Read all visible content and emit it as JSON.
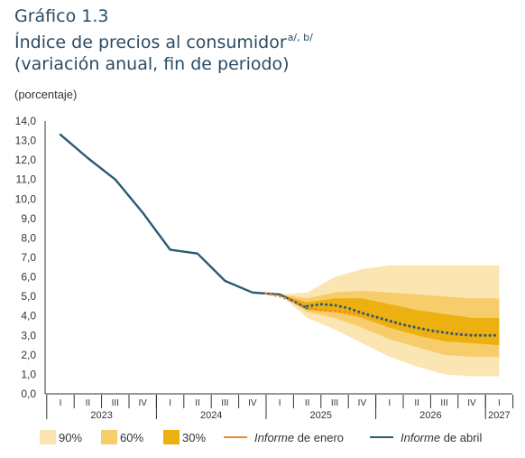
{
  "header": {
    "label": "Gráfico 1.3",
    "title": "Índice de precios al consumidor",
    "title_sup": "a/, b/",
    "subtitle": "(variación anual, fin de periodo)"
  },
  "units": "(porcentaje)",
  "legend": {
    "band90": "90%",
    "band60": "60%",
    "band30": "30%",
    "enero_it": "Informe",
    "enero_rest": " de enero",
    "abril_it": "Informe",
    "abril_rest": " de abril"
  },
  "colors": {
    "band90": "#fbe6b3",
    "band60": "#f6cd6a",
    "band30": "#ecb010",
    "enero": "#ef8a2c",
    "abril": "#2a5a73",
    "text": "#2a4b63",
    "axis": "#333333"
  },
  "chart_data": {
    "type": "line",
    "ylim": [
      0,
      14
    ],
    "yticks": [
      "0,0",
      "1,0",
      "2,0",
      "3,0",
      "4,0",
      "5,0",
      "6,0",
      "7,0",
      "8,0",
      "9,0",
      "10,0",
      "11,0",
      "12,0",
      "13,0",
      "14,0"
    ],
    "quarters": [
      "I",
      "II",
      "III",
      "IV",
      "I",
      "II",
      "III",
      "IV",
      "I",
      "II",
      "III",
      "IV",
      "I",
      "II",
      "III",
      "IV",
      "I"
    ],
    "years": [
      "2023",
      "2024",
      "2025",
      "2026",
      "2027"
    ],
    "series": [
      {
        "name": "Informe de abril",
        "style": "solid",
        "x": [
          0,
          1,
          2,
          3,
          4,
          5,
          6,
          7,
          8,
          9
        ],
        "y": [
          13.3,
          12.1,
          11.0,
          9.3,
          7.4,
          7.2,
          5.8,
          5.2,
          5.1,
          4.4
        ]
      },
      {
        "name": "Informe de enero",
        "style": "dotted",
        "x": [
          7.5,
          8,
          8.5,
          9,
          9.5,
          10,
          10.5,
          11,
          11.5,
          12,
          12.5,
          13,
          13.5,
          14,
          14.5,
          15,
          15.5,
          16
        ],
        "y": [
          5.15,
          5.0,
          4.75,
          4.45,
          4.3,
          4.25,
          4.2,
          4.1,
          3.9,
          3.7,
          3.5,
          3.35,
          3.25,
          3.15,
          3.1,
          3.05,
          3.0,
          3.0
        ]
      },
      {
        "name": "Informe de abril",
        "style": "dotted",
        "x": [
          9,
          9.5,
          10,
          10.5,
          11,
          11.5,
          12,
          12.5,
          13,
          13.5,
          14,
          14.5,
          15,
          15.5,
          16
        ],
        "y": [
          4.5,
          4.6,
          4.55,
          4.4,
          4.15,
          3.95,
          3.75,
          3.55,
          3.4,
          3.25,
          3.15,
          3.05,
          3.0,
          3.0,
          3.0
        ]
      }
    ],
    "fan": {
      "x": [
        8,
        9,
        10,
        11,
        12,
        13,
        14,
        15,
        16
      ],
      "band90": {
        "upper": [
          5.1,
          5.2,
          6.0,
          6.4,
          6.6,
          6.6,
          6.6,
          6.6,
          6.6
        ],
        "lower": [
          5.1,
          3.9,
          3.3,
          2.6,
          1.9,
          1.4,
          1.0,
          0.9,
          0.9
        ]
      },
      "band60": {
        "upper": [
          5.1,
          4.9,
          5.2,
          5.3,
          5.2,
          5.1,
          5.0,
          4.9,
          4.9
        ],
        "lower": [
          5.1,
          4.2,
          3.9,
          3.4,
          2.8,
          2.4,
          2.0,
          1.9,
          1.9
        ]
      },
      "band30": {
        "upper": [
          5.1,
          4.7,
          4.9,
          4.9,
          4.6,
          4.3,
          4.1,
          3.9,
          3.9
        ],
        "lower": [
          5.1,
          4.3,
          4.2,
          3.9,
          3.4,
          3.0,
          2.7,
          2.6,
          2.5
        ]
      }
    }
  }
}
